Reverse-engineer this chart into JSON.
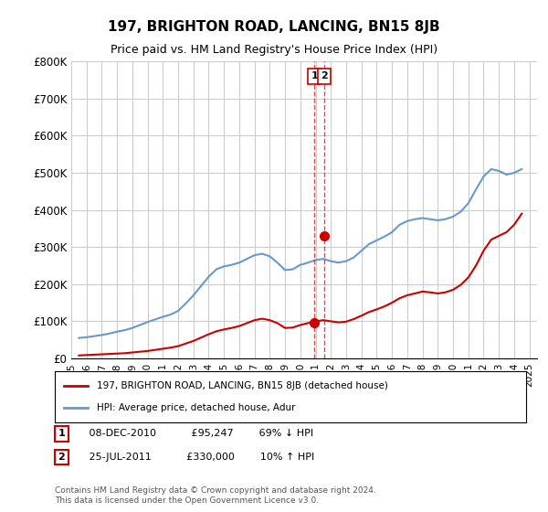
{
  "title": "197, BRIGHTON ROAD, LANCING, BN15 8JB",
  "subtitle": "Price paid vs. HM Land Registry's House Price Index (HPI)",
  "ylabel_ticks": [
    "£0",
    "£100K",
    "£200K",
    "£300K",
    "£400K",
    "£500K",
    "£600K",
    "£700K",
    "£800K"
  ],
  "ytick_vals": [
    0,
    100000,
    200000,
    300000,
    400000,
    500000,
    600000,
    700000,
    800000
  ],
  "ylim": [
    0,
    800000
  ],
  "xlim_start": 1995.0,
  "xlim_end": 2025.5,
  "bg_color": "#ffffff",
  "grid_color": "#cccccc",
  "red_line_color": "#cc0000",
  "blue_line_color": "#6699cc",
  "transaction1": {
    "date_num": 2010.92,
    "price": 95247,
    "label": "1"
  },
  "transaction2": {
    "date_num": 2011.56,
    "price": 330000,
    "label": "2"
  },
  "legend_line1": "197, BRIGHTON ROAD, LANCING, BN15 8JB (detached house)",
  "legend_line2": "HPI: Average price, detached house, Adur",
  "table_rows": [
    [
      "1",
      "08-DEC-2010",
      "£95,247",
      "69% ↓ HPI"
    ],
    [
      "2",
      "25-JUL-2011",
      "£330,000",
      "10% ↑ HPI"
    ]
  ],
  "footer": "Contains HM Land Registry data © Crown copyright and database right 2024.\nThis data is licensed under the Open Government Licence v3.0.",
  "hpi_data": {
    "years": [
      1995.5,
      1996.0,
      1996.5,
      1997.0,
      1997.5,
      1998.0,
      1998.5,
      1999.0,
      1999.5,
      2000.0,
      2000.5,
      2001.0,
      2001.5,
      2002.0,
      2002.5,
      2003.0,
      2003.5,
      2004.0,
      2004.5,
      2005.0,
      2005.5,
      2006.0,
      2006.5,
      2007.0,
      2007.5,
      2008.0,
      2008.5,
      2009.0,
      2009.5,
      2010.0,
      2010.5,
      2011.0,
      2011.5,
      2012.0,
      2012.5,
      2013.0,
      2013.5,
      2014.0,
      2014.5,
      2015.0,
      2015.5,
      2016.0,
      2016.5,
      2017.0,
      2017.5,
      2018.0,
      2018.5,
      2019.0,
      2019.5,
      2020.0,
      2020.5,
      2021.0,
      2021.5,
      2022.0,
      2022.5,
      2023.0,
      2023.5,
      2024.0,
      2024.5
    ],
    "values": [
      55000,
      57000,
      60000,
      63000,
      67000,
      72000,
      76000,
      82000,
      90000,
      98000,
      105000,
      112000,
      118000,
      128000,
      148000,
      170000,
      195000,
      220000,
      240000,
      248000,
      252000,
      258000,
      268000,
      278000,
      282000,
      275000,
      258000,
      238000,
      240000,
      252000,
      258000,
      265000,
      268000,
      262000,
      258000,
      262000,
      272000,
      290000,
      308000,
      318000,
      328000,
      340000,
      360000,
      370000,
      375000,
      378000,
      375000,
      372000,
      375000,
      382000,
      395000,
      418000,
      455000,
      490000,
      510000,
      505000,
      495000,
      500000,
      510000
    ]
  },
  "property_data": {
    "years": [
      1995.5,
      1996.0,
      1996.5,
      1997.0,
      1997.5,
      1998.0,
      1998.5,
      1999.0,
      1999.5,
      2000.0,
      2000.5,
      2001.0,
      2001.5,
      2002.0,
      2002.5,
      2003.0,
      2003.5,
      2004.0,
      2004.5,
      2005.0,
      2005.5,
      2006.0,
      2006.5,
      2007.0,
      2007.5,
      2008.0,
      2008.5,
      2009.0,
      2009.5,
      2010.0,
      2010.5,
      2011.0,
      2011.5,
      2012.0,
      2012.5,
      2013.0,
      2013.5,
      2014.0,
      2014.5,
      2015.0,
      2015.5,
      2016.0,
      2016.5,
      2017.0,
      2017.5,
      2018.0,
      2018.5,
      2019.0,
      2019.5,
      2020.0,
      2020.5,
      2021.0,
      2021.5,
      2022.0,
      2022.5,
      2023.0,
      2023.5,
      2024.0,
      2024.5
    ],
    "values": [
      8000,
      9000,
      10000,
      11000,
      12000,
      13000,
      14000,
      16000,
      18000,
      20000,
      23000,
      26000,
      29000,
      33000,
      40000,
      47000,
      56000,
      65000,
      73000,
      78000,
      82000,
      87000,
      95000,
      103000,
      107000,
      103000,
      95000,
      82000,
      83000,
      90000,
      95000,
      100000,
      103000,
      100000,
      97000,
      99000,
      106000,
      115000,
      125000,
      132000,
      140000,
      150000,
      162000,
      170000,
      175000,
      180000,
      178000,
      175000,
      178000,
      185000,
      198000,
      218000,
      250000,
      290000,
      320000,
      330000,
      340000,
      360000,
      390000
    ]
  }
}
